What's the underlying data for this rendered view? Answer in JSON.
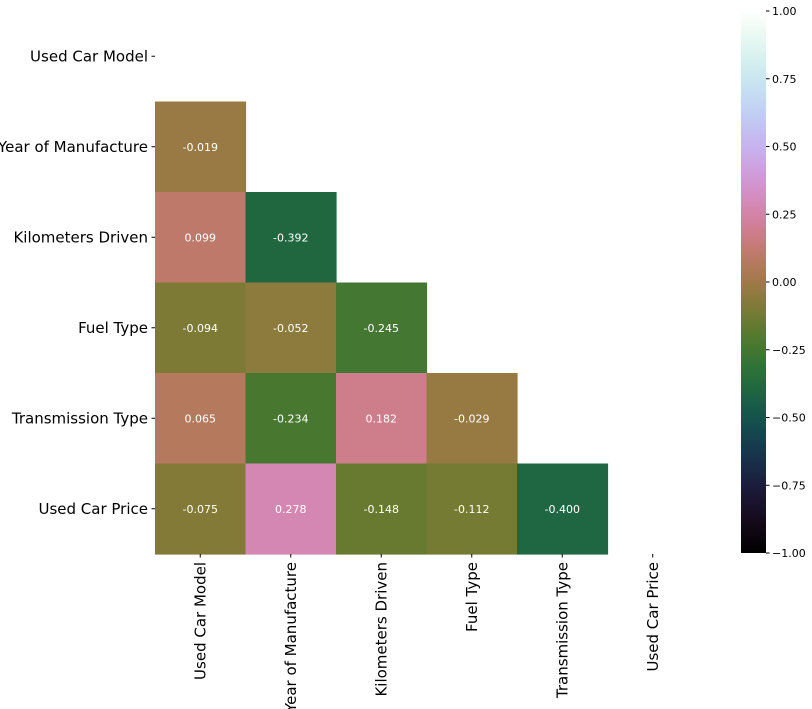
{
  "chart_data": {
    "type": "heatmap",
    "mask": "upper-triangle-including-diagonal",
    "labels": [
      "Used Car Model",
      "Year of Manufacture",
      "Kilometers Driven",
      "Fuel Type",
      "Transmission Type",
      "Used Car Price"
    ],
    "matrix": [
      [
        null,
        null,
        null,
        null,
        null,
        null
      ],
      [
        -0.019,
        null,
        null,
        null,
        null,
        null
      ],
      [
        0.099,
        -0.392,
        null,
        null,
        null,
        null
      ],
      [
        -0.094,
        -0.052,
        -0.245,
        null,
        null,
        null
      ],
      [
        0.065,
        -0.234,
        0.182,
        -0.029,
        null,
        null
      ],
      [
        -0.075,
        0.278,
        -0.148,
        -0.112,
        -0.4,
        null
      ]
    ],
    "cell_labels": [
      [
        null,
        null,
        null,
        null,
        null,
        null
      ],
      [
        "-0.019",
        null,
        null,
        null,
        null,
        null
      ],
      [
        "0.099",
        "-0.392",
        null,
        null,
        null,
        null
      ],
      [
        "-0.094",
        "-0.052",
        "-0.245",
        null,
        null,
        null
      ],
      [
        "0.065",
        "-0.234",
        "0.182",
        "-0.029",
        null,
        null
      ],
      [
        "-0.075",
        "0.278",
        "-0.148",
        "-0.112",
        "-0.400",
        null
      ]
    ],
    "vmin": -1.0,
    "vmax": 1.0,
    "colormap": "cubehelix",
    "colorbar_ticks": [
      "1.00",
      "0.75",
      "0.50",
      "0.25",
      "0.00",
      "−0.25",
      "−0.50",
      "−0.75",
      "−1.00"
    ],
    "colorbar_tick_values": [
      1.0,
      0.75,
      0.5,
      0.25,
      0.0,
      -0.25,
      -0.5,
      -0.75,
      -1.0
    ],
    "title": "",
    "xlabel": "",
    "ylabel": ""
  }
}
